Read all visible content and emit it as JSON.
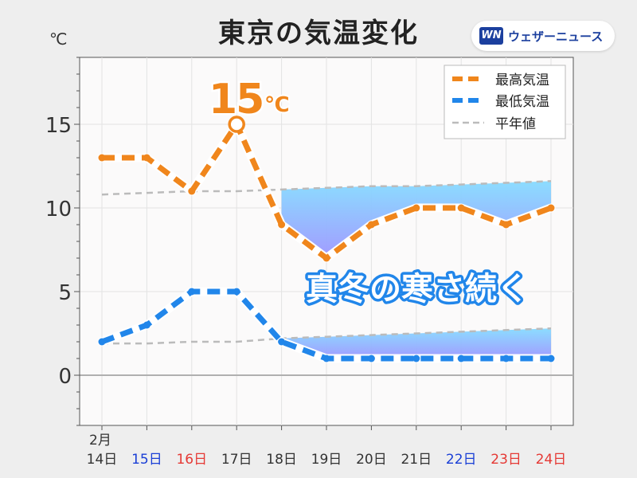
{
  "title": "東京の気温変化",
  "brand": {
    "logo": "WN",
    "name": "ウェザーニュース"
  },
  "chart_data": {
    "type": "line",
    "title": "東京の気温変化",
    "ylabel": "℃",
    "ylim": [
      -3,
      19
    ],
    "yticks": [
      0,
      5,
      10,
      15
    ],
    "grid": true,
    "month_label": "2月",
    "categories": [
      "14日",
      "15日",
      "16日",
      "17日",
      "18日",
      "19日",
      "20日",
      "21日",
      "22日",
      "23日",
      "24日"
    ],
    "category_colors": [
      "#333333",
      "#1a3fd6",
      "#e53935",
      "#333333",
      "#333333",
      "#333333",
      "#333333",
      "#333333",
      "#1a3fd6",
      "#e53935",
      "#e53935"
    ],
    "series": [
      {
        "name": "最高気温",
        "values": [
          13,
          13,
          11,
          15,
          9,
          7,
          9,
          10,
          10,
          9,
          10
        ],
        "color": "#f0861c",
        "style": "dashed"
      },
      {
        "name": "最低気温",
        "values": [
          2,
          3,
          5,
          5,
          2,
          1,
          1,
          1,
          1,
          1,
          1
        ],
        "color": "#2186ea",
        "style": "dashed"
      },
      {
        "name": "平年値",
        "values": [
          10.8,
          10.9,
          11.0,
          11.0,
          11.1,
          11.2,
          11.3,
          11.3,
          11.4,
          11.5,
          11.6
        ],
        "lows": [
          1.9,
          1.9,
          2.0,
          2.0,
          2.2,
          2.3,
          2.4,
          2.5,
          2.6,
          2.7,
          2.8
        ],
        "color": "#bbbbbb",
        "style": "dashed"
      }
    ],
    "legend_position": "top-right",
    "peak": {
      "index": 3,
      "value": "15",
      "unit": "℃",
      "color": "#f0861c"
    },
    "annotation": "真冬の寒さ続く",
    "annotation_color": "#2186ea"
  }
}
